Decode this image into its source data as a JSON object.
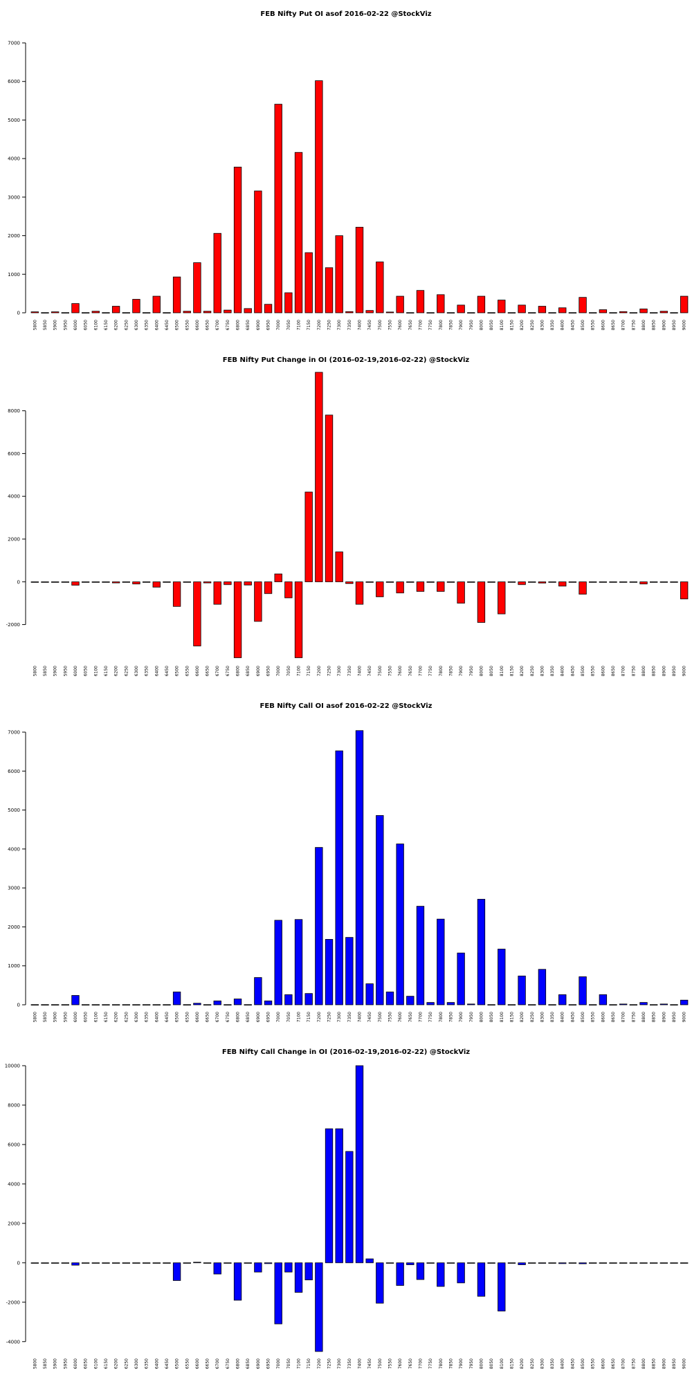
{
  "chart_data": [
    {
      "type": "bar",
      "title": "FEB Nifty Put OI asof 2016-02-22 @StockViz",
      "color": "#ff0000",
      "categories": [
        "5800",
        "5850",
        "5900",
        "5950",
        "6000",
        "6050",
        "6100",
        "6150",
        "6200",
        "6250",
        "6300",
        "6350",
        "6400",
        "6450",
        "6500",
        "6550",
        "6600",
        "6650",
        "6700",
        "6750",
        "6800",
        "6850",
        "6900",
        "6950",
        "7000",
        "7050",
        "7100",
        "7150",
        "7200",
        "7250",
        "7300",
        "7350",
        "7400",
        "7450",
        "7500",
        "7550",
        "7600",
        "7650",
        "7700",
        "7750",
        "7800",
        "7850",
        "7900",
        "7950",
        "8000",
        "8050",
        "8100",
        "8150",
        "8200",
        "8250",
        "8300",
        "8350",
        "8400",
        "8450",
        "8500",
        "8550",
        "8600",
        "8650",
        "8700",
        "8750",
        "8800",
        "8850",
        "8900",
        "8950",
        "9000"
      ],
      "values": [
        25,
        5,
        25,
        5,
        240,
        5,
        40,
        5,
        170,
        5,
        350,
        5,
        430,
        5,
        930,
        40,
        1300,
        40,
        2060,
        70,
        3780,
        110,
        3160,
        220,
        5410,
        520,
        4160,
        1560,
        6020,
        1170,
        2000,
        30,
        2220,
        60,
        1320,
        20,
        430,
        5,
        580,
        5,
        470,
        5,
        200,
        5,
        430,
        5,
        330,
        5,
        200,
        5,
        170,
        5,
        130,
        5,
        400,
        5,
        80,
        5,
        30,
        5,
        100,
        5,
        40,
        5,
        430
      ],
      "yticks": [
        0,
        1000,
        2000,
        3000,
        4000,
        5000,
        6000,
        7000
      ],
      "ylim": [
        0,
        7000
      ]
    },
    {
      "type": "bar",
      "title": "FEB Nifty Put Change in OI (2016-02-19,2016-02-22) @StockViz",
      "color": "#ff0000",
      "categories": [
        "5800",
        "5850",
        "5900",
        "5950",
        "6000",
        "6050",
        "6100",
        "6150",
        "6200",
        "6250",
        "6300",
        "6350",
        "6400",
        "6450",
        "6500",
        "6550",
        "6600",
        "6650",
        "6700",
        "6750",
        "6800",
        "6850",
        "6900",
        "6950",
        "7000",
        "7050",
        "7100",
        "7150",
        "7200",
        "7250",
        "7300",
        "7350",
        "7400",
        "7450",
        "7500",
        "7550",
        "7600",
        "7650",
        "7700",
        "7750",
        "7800",
        "7850",
        "7900",
        "7950",
        "8000",
        "8050",
        "8100",
        "8150",
        "8200",
        "8250",
        "8300",
        "8350",
        "8400",
        "8450",
        "8500",
        "8550",
        "8600",
        "8650",
        "8700",
        "8750",
        "8800",
        "8850",
        "8900",
        "8950",
        "9000"
      ],
      "values": [
        -10,
        -10,
        -10,
        -10,
        -160,
        -10,
        -10,
        -10,
        -50,
        -10,
        -100,
        -10,
        -250,
        -10,
        -1150,
        -10,
        -3000,
        -50,
        -1050,
        -130,
        -3550,
        -150,
        -1850,
        -550,
        370,
        -750,
        -3550,
        4200,
        9800,
        7800,
        1400,
        -80,
        -1050,
        -10,
        -700,
        -10,
        -520,
        -10,
        -450,
        -10,
        -450,
        -10,
        -1000,
        -10,
        -1900,
        -10,
        -1500,
        -10,
        -130,
        -10,
        -60,
        -10,
        -200,
        -10,
        -580,
        -10,
        -10,
        -10,
        -10,
        -10,
        -100,
        -10,
        -10,
        -10,
        -800
      ],
      "yticks": [
        -2000,
        0,
        2000,
        4000,
        6000,
        8000
      ],
      "ylim": [
        -3600,
        9800
      ]
    },
    {
      "type": "bar",
      "title": "FEB Nifty Call OI asof 2016-02-22 @StockViz",
      "color": "#0000ff",
      "categories": [
        "5800",
        "5850",
        "5900",
        "5950",
        "6000",
        "6050",
        "6100",
        "6150",
        "6200",
        "6250",
        "6300",
        "6350",
        "6400",
        "6450",
        "6500",
        "6550",
        "6600",
        "6650",
        "6700",
        "6750",
        "6800",
        "6850",
        "6900",
        "6950",
        "7000",
        "7050",
        "7100",
        "7150",
        "7200",
        "7250",
        "7300",
        "7350",
        "7400",
        "7450",
        "7500",
        "7550",
        "7600",
        "7650",
        "7700",
        "7750",
        "7800",
        "7850",
        "7900",
        "7950",
        "8000",
        "8050",
        "8100",
        "8150",
        "8200",
        "8250",
        "8300",
        "8350",
        "8400",
        "8450",
        "8500",
        "8550",
        "8600",
        "8650",
        "8700",
        "8750",
        "8800",
        "8850",
        "8900",
        "8950",
        "9000"
      ],
      "values": [
        5,
        5,
        5,
        5,
        240,
        5,
        5,
        5,
        5,
        5,
        5,
        5,
        5,
        5,
        330,
        5,
        40,
        5,
        100,
        5,
        150,
        5,
        700,
        100,
        2170,
        260,
        2190,
        290,
        4040,
        1680,
        6520,
        1730,
        7040,
        540,
        4860,
        330,
        4130,
        220,
        2530,
        60,
        2200,
        60,
        1330,
        20,
        2710,
        5,
        1430,
        5,
        740,
        5,
        910,
        5,
        260,
        5,
        720,
        5,
        260,
        5,
        20,
        5,
        60,
        5,
        20,
        5,
        120
      ],
      "yticks": [
        0,
        1000,
        2000,
        3000,
        4000,
        5000,
        6000,
        7000
      ],
      "ylim": [
        0,
        7000
      ]
    },
    {
      "type": "bar",
      "title": "FEB Nifty Call Change in OI (2016-02-19,2016-02-22) @StockViz",
      "color": "#0000ff",
      "categories": [
        "5800",
        "5850",
        "5900",
        "5950",
        "6000",
        "6050",
        "6100",
        "6150",
        "6200",
        "6250",
        "6300",
        "6350",
        "6400",
        "6450",
        "6500",
        "6550",
        "6600",
        "6650",
        "6700",
        "6750",
        "6800",
        "6850",
        "6900",
        "6950",
        "7000",
        "7050",
        "7100",
        "7150",
        "7200",
        "7250",
        "7300",
        "7350",
        "7400",
        "7450",
        "7500",
        "7550",
        "7600",
        "7650",
        "7700",
        "7750",
        "7800",
        "7850",
        "7900",
        "7950",
        "8000",
        "8050",
        "8100",
        "8150",
        "8200",
        "8250",
        "8300",
        "8350",
        "8400",
        "8450",
        "8500",
        "8550",
        "8600",
        "8650",
        "8700",
        "8750",
        "8800",
        "8850",
        "8900",
        "8950",
        "9000"
      ],
      "values": [
        -10,
        -10,
        -10,
        -10,
        -120,
        -10,
        -10,
        -10,
        -10,
        -10,
        -10,
        -10,
        -10,
        -10,
        -900,
        -10,
        30,
        -10,
        -570,
        -10,
        -1900,
        -10,
        -470,
        -40,
        -3100,
        -470,
        -1500,
        -870,
        -4500,
        6800,
        6800,
        5650,
        10000,
        200,
        -2050,
        -10,
        -1150,
        -100,
        -850,
        -10,
        -1200,
        -10,
        -1020,
        -10,
        -1700,
        -10,
        -2450,
        -10,
        -100,
        -10,
        -30,
        -10,
        -40,
        -10,
        -50,
        -10,
        -10,
        -10,
        -10,
        -10,
        -10,
        -10,
        -10,
        -10,
        -10
      ],
      "yticks": [
        -4000,
        -2000,
        0,
        2000,
        4000,
        6000,
        8000,
        10000
      ],
      "ylim": [
        -4500,
        10000
      ]
    }
  ]
}
